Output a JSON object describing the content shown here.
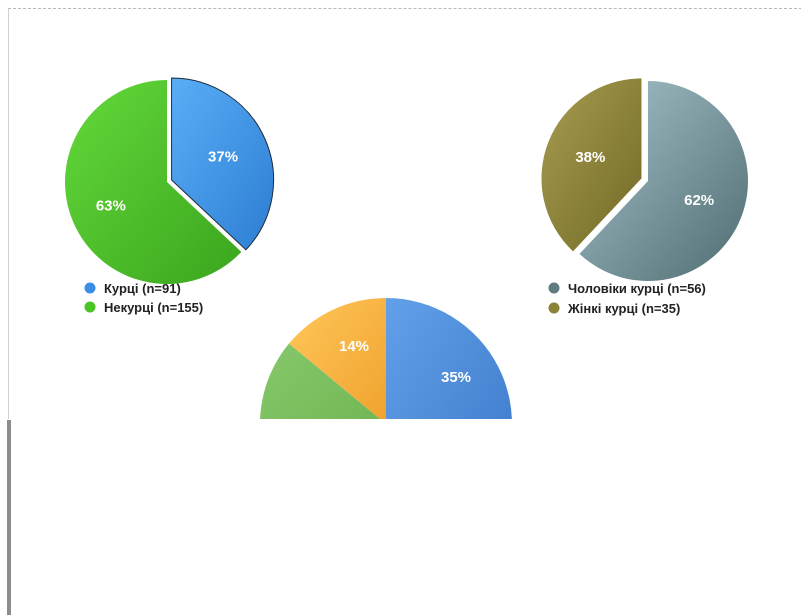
{
  "chart_data": [
    {
      "type": "pie",
      "series": [
        {
          "name": "Курці (n=91)",
          "value": 37,
          "label": "37%",
          "color": "#3a8ee6"
        },
        {
          "name": "Некурці (n=155)",
          "value": 63,
          "label": "63%",
          "color": "#4bc425"
        }
      ],
      "legend_placement": "bottom"
    },
    {
      "type": "pie",
      "series": [
        {
          "name": "Чоловіки курці (n=56)",
          "value": 62,
          "label": "62%",
          "color": "#5f7b80"
        },
        {
          "name": "Жінкі курці (n=35)",
          "value": 38,
          "label": "38%",
          "color": "#8a8236"
        }
      ],
      "legend_placement": "bottom"
    },
    {
      "type": "pie",
      "partially_visible": true,
      "series": [
        {
          "value": 35,
          "label": "35%",
          "color": "#4f8fde"
        },
        {
          "value": 14,
          "label": "14%",
          "color": "#f7b43f"
        },
        {
          "value": null,
          "label": "",
          "color": "#71b551"
        }
      ]
    }
  ]
}
